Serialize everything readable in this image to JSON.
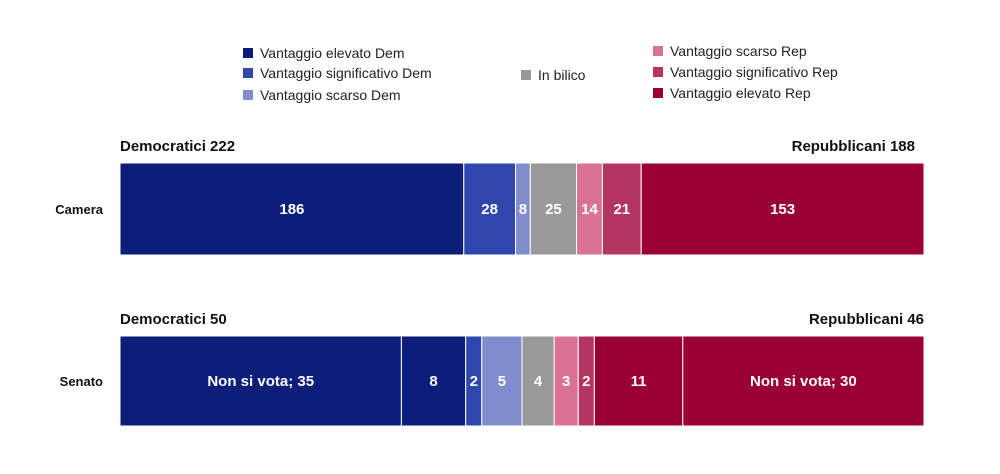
{
  "chart_data": {
    "type": "bar",
    "orientation": "horizontal",
    "stacked": true,
    "legend": [
      {
        "key": "dem_high",
        "label": "Vantaggio elevato Dem",
        "color": "#0d1e7a"
      },
      {
        "key": "dem_sig",
        "label": "Vantaggio significativo Dem",
        "color": "#2f46ae"
      },
      {
        "key": "dem_low",
        "label": "Vantaggio scarso Dem",
        "color": "#7f8dcc"
      },
      {
        "key": "tossup",
        "label": "In bilico",
        "color": "#999999"
      },
      {
        "key": "rep_low",
        "label": "Vantaggio scarso Rep",
        "color": "#d87396"
      },
      {
        "key": "rep_sig",
        "label": "Vantaggio significativo Rep",
        "color": "#b43561"
      },
      {
        "key": "rep_high",
        "label": "Vantaggio elevato Rep",
        "color": "#9b0034"
      }
    ],
    "rows": [
      {
        "label": "Camera",
        "dem_total": "Democratici  222",
        "rep_total": "Repubblicani  188",
        "segments": [
          {
            "value": 186,
            "label": "186",
            "color": "#0d1e7a"
          },
          {
            "value": 28,
            "label": "28",
            "color": "#2f46ae"
          },
          {
            "value": 8,
            "label": "8",
            "color": "#7f8dcc"
          },
          {
            "value": 25,
            "label": "25",
            "color": "#999999"
          },
          {
            "value": 14,
            "label": "14",
            "color": "#d87396"
          },
          {
            "value": 21,
            "label": "21",
            "color": "#b43561"
          },
          {
            "value": 153,
            "label": "153",
            "color": "#9b0034"
          }
        ]
      },
      {
        "label": "Senato",
        "dem_total": "Democratici  50",
        "rep_total": "Repubblicani  46",
        "segments": [
          {
            "value": 35,
            "label": "Non si vota; 35",
            "color": "#0d1e7a"
          },
          {
            "value": 8,
            "label": "8",
            "color": "#0d1e7a"
          },
          {
            "value": 2,
            "label": "2",
            "color": "#2f46ae"
          },
          {
            "value": 5,
            "label": "5",
            "color": "#7f8dcc"
          },
          {
            "value": 4,
            "label": "4",
            "color": "#999999"
          },
          {
            "value": 3,
            "label": "3",
            "color": "#d87396"
          },
          {
            "value": 2,
            "label": "2",
            "color": "#b43561"
          },
          {
            "value": 11,
            "label": "11",
            "color": "#9b0034"
          },
          {
            "value": 30,
            "label": "Non si vota; 30",
            "color": "#9b0034"
          }
        ]
      }
    ]
  }
}
